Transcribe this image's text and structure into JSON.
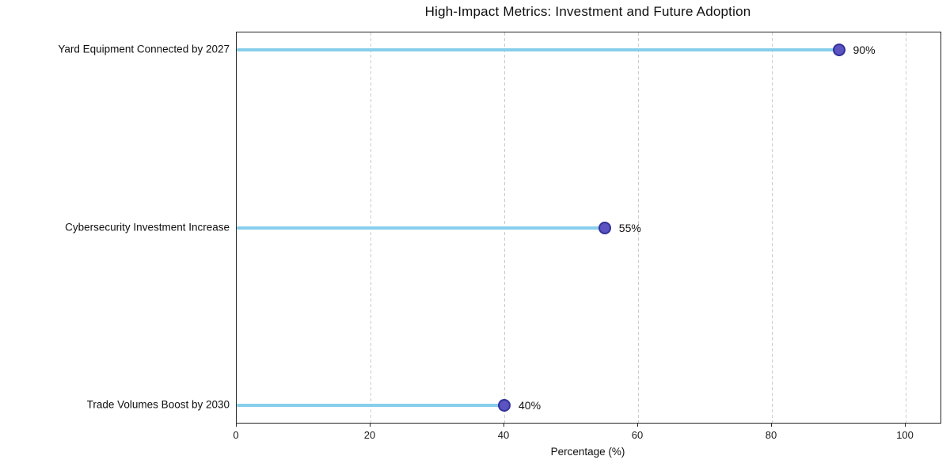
{
  "figure": {
    "background": "#ffffff"
  },
  "chart_data": {
    "type": "bar",
    "variant": "horizontal_lollipop",
    "title": "High-Impact Metrics: Investment and Future Adoption",
    "xlabel": "Percentage (%)",
    "ylabel": "",
    "categories": [
      "Yard Equipment Connected by 2027",
      "Cybersecurity Investment Increase",
      "Trade Volumes Boost by 2030"
    ],
    "values": [
      90,
      55,
      40
    ],
    "value_labels": [
      "90%",
      "55%",
      "40%"
    ],
    "xlim": [
      0,
      105.2
    ],
    "xticks": [
      0,
      20,
      40,
      60,
      80,
      100
    ],
    "xtick_labels": [
      "0",
      "20",
      "40",
      "60",
      "80",
      "100"
    ],
    "grid": {
      "axis": "x",
      "style": "dashed",
      "color": "#cccccc"
    },
    "legend": "none",
    "colors": {
      "stem": "#87CEEB",
      "marker_fill": "#5B53C1",
      "marker_edge": "#31319A",
      "axis_frame": "#262626",
      "grid": "#cccccc",
      "text": "#111111"
    }
  }
}
